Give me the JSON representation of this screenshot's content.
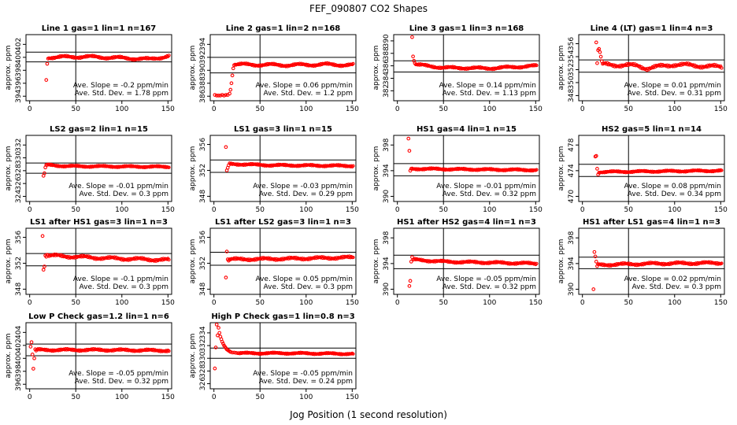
{
  "figure": {
    "title": "FEF_090807  CO2 Shapes",
    "xlabel": "Jog Position (1 second resolution)"
  },
  "colors": {
    "points": "#ff0000",
    "axes": "#000000",
    "background": "#ffffff"
  },
  "chart_data": [
    {
      "type": "scatter",
      "title": "Line 1 gas=1 lin=1 n=167",
      "ylabel": "approx. ppm",
      "xlim": [
        -4,
        154
      ],
      "xticks": [
        0,
        50,
        100,
        150
      ],
      "ylim": [
        393.3,
        403.5
      ],
      "yticks": [
        394,
        396,
        398,
        400,
        402
      ],
      "hlines": [
        399.3,
        400.8
      ],
      "vline": 50,
      "slope_text": "Ave. Slope = -0.2 ppm/min",
      "std_text": "Ave. Std. Dev. = 1.78 ppm",
      "series": [
        {
          "x": [
            18,
            19,
            20
          ],
          "y": [
            396.5,
            399.0,
            399.8
          ]
        }
      ],
      "trend": {
        "x0": 21,
        "x1": 151,
        "base": 400.0,
        "amp": 0.15,
        "noise": 0.08,
        "curve": [
          [
            21,
            400.0
          ],
          [
            60,
            400.1
          ],
          [
            100,
            399.9
          ],
          [
            130,
            399.7
          ],
          [
            151,
            400.2
          ]
        ]
      }
    },
    {
      "type": "scatter",
      "title": "Line 2 gas=1 lin=2 n=168",
      "ylabel": "approx. ppm",
      "xlim": [
        -4,
        154
      ],
      "xticks": [
        0,
        50,
        100,
        150
      ],
      "ylim": [
        385.3,
        395.5
      ],
      "yticks": [
        386,
        388,
        390,
        392,
        394
      ],
      "hlines": [
        389.6,
        392.0
      ],
      "vline": 50,
      "slope_text": "Ave. Slope = 0.06 ppm/min",
      "std_text": "Ave. Std. Dev. = 1.2 ppm",
      "series": [
        {
          "x": [
            1,
            3,
            5,
            7,
            9,
            11,
            13,
            15,
            17,
            18,
            19,
            20,
            21,
            22
          ],
          "y": [
            386.2,
            386.1,
            386.1,
            386.1,
            386.2,
            386.1,
            386.2,
            386.2,
            386.4,
            387.0,
            388.0,
            389.2,
            390.3,
            390.8
          ]
        }
      ],
      "trend": {
        "x0": 23,
        "x1": 151,
        "base": 390.9,
        "amp": 0.15,
        "noise": 0.08,
        "curve": [
          [
            23,
            390.9
          ],
          [
            80,
            390.8
          ],
          [
            120,
            390.9
          ],
          [
            151,
            390.8
          ]
        ]
      }
    },
    {
      "type": "scatter",
      "title": "Line 3 gas=1 lin=3 n=168",
      "ylabel": "approx. ppm",
      "xlim": [
        -4,
        154
      ],
      "xticks": [
        0,
        50,
        100,
        150
      ],
      "ylim": [
        380.4,
        391.0
      ],
      "yticks": [
        382,
        384,
        386,
        388,
        390
      ],
      "hlines": [
        385.0,
        386.8
      ],
      "vline": 50,
      "slope_text": "Ave. Slope = 0.14 ppm/min",
      "std_text": "Ave. Std. Dev. = 1.13 ppm",
      "series": [
        {
          "x": [
            16,
            17,
            18,
            19
          ],
          "y": [
            390.6,
            387.5,
            386.8,
            386.4
          ]
        }
      ],
      "trend": {
        "x0": 20,
        "x1": 151,
        "base": 385.8,
        "amp": 0.12,
        "noise": 0.08,
        "curve": [
          [
            20,
            386.2
          ],
          [
            50,
            385.7
          ],
          [
            100,
            385.6
          ],
          [
            151,
            386.0
          ]
        ]
      }
    },
    {
      "type": "scatter",
      "title": "Line 4 (LT) gas=1 lin=4 n=3",
      "ylabel": "approx. ppm",
      "xlim": [
        -4,
        154
      ],
      "xticks": [
        0,
        50,
        100,
        150
      ],
      "ylim": [
        347.2,
        357.4
      ],
      "yticks": [
        348,
        350,
        352,
        354,
        356
      ],
      "hlines": [
        351.6,
        353.5
      ],
      "vline": 50,
      "slope_text": "Ave. Slope = 0.01 ppm/min",
      "std_text": "Ave. Std. Dev. = 0.31 ppm",
      "series": [
        {
          "x": [
            15,
            16,
            17,
            18,
            19,
            20,
            21,
            22
          ],
          "y": [
            356.2,
            353.0,
            355.0,
            355.2,
            354.7,
            354.0,
            353.3,
            352.9
          ]
        }
      ],
      "trend": {
        "x0": 23,
        "x1": 151,
        "base": 352.7,
        "amp": 0.2,
        "noise": 0.12,
        "curve": [
          [
            23,
            352.8
          ],
          [
            60,
            352.6
          ],
          [
            70,
            352.2
          ],
          [
            100,
            352.8
          ],
          [
            151,
            352.4
          ]
        ]
      }
    },
    {
      "type": "scatter",
      "title": "LS2 gas=2 lin=1 n=15",
      "ylabel": "approx. ppm",
      "xlim": [
        -4,
        154
      ],
      "xticks": [
        0,
        50,
        100,
        150
      ],
      "ylim": [
        323.2,
        333.5
      ],
      "yticks": [
        324,
        326,
        328,
        330,
        332
      ],
      "hlines": [
        327.6,
        329.2
      ],
      "vline": 50,
      "slope_text": "Ave. Slope = -0.01 ppm/min",
      "std_text": "Ave. Std. Dev. = 0.3 ppm",
      "series": [
        {
          "x": [
            15,
            16,
            17,
            18,
            19
          ],
          "y": [
            327.2,
            327.6,
            328.5,
            328.9,
            328.9
          ]
        }
      ],
      "trend": {
        "x0": 20,
        "x1": 151,
        "base": 328.6,
        "amp": 0.08,
        "noise": 0.06,
        "curve": [
          [
            20,
            328.9
          ],
          [
            40,
            328.7
          ],
          [
            151,
            328.6
          ]
        ]
      }
    },
    {
      "type": "scatter",
      "title": "LS1 gas=3 lin=1 n=15",
      "ylabel": "approx. ppm",
      "xlim": [
        -4,
        154
      ],
      "xticks": [
        0,
        50,
        100,
        150
      ],
      "ylim": [
        347.2,
        357.4
      ],
      "yticks": [
        348,
        352,
        356
      ],
      "hlines": [
        351.7,
        353.6
      ],
      "vline": 50,
      "slope_text": "Ave. Slope = -0.03 ppm/min",
      "std_text": "Ave. Std. Dev. = 0.29 ppm",
      "series": [
        {
          "x": [
            13,
            14,
            15,
            16
          ],
          "y": [
            355.6,
            352.0,
            352.4,
            352.8
          ]
        }
      ],
      "trend": {
        "x0": 17,
        "x1": 151,
        "base": 352.8,
        "amp": 0.08,
        "noise": 0.07,
        "curve": [
          [
            17,
            353.0
          ],
          [
            60,
            352.8
          ],
          [
            151,
            352.7
          ]
        ]
      }
    },
    {
      "type": "scatter",
      "title": "HS1 gas=4 lin=1 n=15",
      "ylabel": "approx. ppm",
      "xlim": [
        -4,
        154
      ],
      "xticks": [
        0,
        50,
        100,
        150
      ],
      "ylim": [
        389.2,
        399.5
      ],
      "yticks": [
        390,
        394,
        398
      ],
      "hlines": [
        393.2,
        395.1
      ],
      "vline": 50,
      "slope_text": "Ave. Slope = -0.01 ppm/min",
      "std_text": "Ave. Std. Dev. = 0.32 ppm",
      "series": [
        {
          "x": [
            12,
            13,
            14,
            15
          ],
          "y": [
            399.0,
            397.1,
            394.0,
            394.3
          ]
        }
      ],
      "trend": {
        "x0": 16,
        "x1": 151,
        "base": 394.2,
        "amp": 0.08,
        "noise": 0.07,
        "curve": [
          [
            16,
            394.3
          ],
          [
            80,
            394.2
          ],
          [
            151,
            394.1
          ]
        ]
      }
    },
    {
      "type": "scatter",
      "title": "HS2 gas=5 lin=1 n=14",
      "ylabel": "approx. ppm",
      "xlim": [
        -4,
        154
      ],
      "xticks": [
        0,
        50,
        100,
        150
      ],
      "ylim": [
        469.2,
        479.5
      ],
      "yticks": [
        470,
        474,
        478
      ],
      "hlines": [
        473.1,
        475.0
      ],
      "vline": 50,
      "slope_text": "Ave. Slope = 0.08 ppm/min",
      "std_text": "Ave. Std. Dev. = 0.34 ppm",
      "series": [
        {
          "x": [
            14,
            15,
            16,
            17,
            18
          ],
          "y": [
            476.2,
            476.3,
            474.3,
            473.4,
            473.7
          ]
        }
      ],
      "trend": {
        "x0": 19,
        "x1": 151,
        "base": 473.9,
        "amp": 0.08,
        "noise": 0.06,
        "curve": [
          [
            19,
            473.8
          ],
          [
            80,
            473.9
          ],
          [
            151,
            474.0
          ]
        ]
      }
    },
    {
      "type": "scatter",
      "title": "LS1 after HS1 gas=3 lin=1 n=3",
      "ylabel": "approx. ppm",
      "xlim": [
        -4,
        154
      ],
      "xticks": [
        0,
        50,
        100,
        150
      ],
      "ylim": [
        347.2,
        357.4
      ],
      "yticks": [
        348,
        352,
        356
      ],
      "hlines": [
        351.6,
        353.5
      ],
      "vline": 50,
      "slope_text": "Ave. Slope = -0.1 ppm/min",
      "std_text": "Ave. Std. Dev. = 0.3 ppm",
      "series": [
        {
          "x": [
            14,
            15,
            16,
            17,
            18,
            19
          ],
          "y": [
            356.2,
            351.0,
            351.5,
            353.2,
            353.0,
            353.3
          ]
        }
      ],
      "trend": {
        "x0": 20,
        "x1": 151,
        "base": 352.8,
        "amp": 0.15,
        "noise": 0.1,
        "curve": [
          [
            20,
            353.2
          ],
          [
            80,
            352.8
          ],
          [
            151,
            352.5
          ]
        ]
      }
    },
    {
      "type": "scatter",
      "title": "LS1 after LS2 gas=3 lin=1 n=3",
      "ylabel": "approx. ppm",
      "xlim": [
        -4,
        154
      ],
      "xticks": [
        0,
        50,
        100,
        150
      ],
      "ylim": [
        347.2,
        357.4
      ],
      "yticks": [
        348,
        352,
        356
      ],
      "hlines": [
        351.7,
        353.7
      ],
      "vline": 50,
      "slope_text": "Ave. Slope = 0.05 ppm/min",
      "std_text": "Ave. Std. Dev. = 0.3 ppm",
      "series": [
        {
          "x": [
            13,
            14,
            15,
            16,
            17
          ],
          "y": [
            349.8,
            353.8,
            352.6,
            352.4,
            352.6
          ]
        }
      ],
      "trend": {
        "x0": 18,
        "x1": 151,
        "base": 352.7,
        "amp": 0.12,
        "noise": 0.1,
        "curve": [
          [
            18,
            352.6
          ],
          [
            80,
            352.7
          ],
          [
            151,
            352.9
          ]
        ]
      }
    },
    {
      "type": "scatter",
      "title": "HS1 after HS2 gas=4 lin=1 n=3",
      "ylabel": "approx. ppm",
      "xlim": [
        -4,
        154
      ],
      "xticks": [
        0,
        50,
        100,
        150
      ],
      "ylim": [
        389.2,
        399.5
      ],
      "yticks": [
        390,
        394,
        398
      ],
      "hlines": [
        393.2,
        395.3
      ],
      "vline": 50,
      "slope_text": "Ave. Slope = -0.05 ppm/min",
      "std_text": "Ave. Std. Dev. = 0.32 ppm",
      "series": [
        {
          "x": [
            13,
            14,
            15,
            16,
            17
          ],
          "y": [
            390.5,
            391.3,
            394.3,
            395.0,
            394.6
          ]
        }
      ],
      "trend": {
        "x0": 18,
        "x1": 151,
        "base": 394.2,
        "amp": 0.1,
        "noise": 0.08,
        "curve": [
          [
            18,
            394.6
          ],
          [
            50,
            394.3
          ],
          [
            151,
            394.0
          ]
        ]
      }
    },
    {
      "type": "scatter",
      "title": "HS1 after LS1 gas=4 lin=1 n=3",
      "ylabel": "approx. ppm",
      "xlim": [
        -4,
        154
      ],
      "xticks": [
        0,
        50,
        100,
        150
      ],
      "ylim": [
        389.2,
        399.5
      ],
      "yticks": [
        390,
        394,
        398
      ],
      "hlines": [
        393.2,
        395.0
      ],
      "vline": 50,
      "slope_text": "Ave. Slope = 0.02 ppm/min",
      "std_text": "Ave. Std. Dev. = 0.3 ppm",
      "series": [
        {
          "x": [
            12,
            13,
            14,
            15,
            16,
            17
          ],
          "y": [
            390.0,
            395.8,
            395.1,
            394.3,
            393.6,
            393.9
          ]
        }
      ],
      "trend": {
        "x0": 18,
        "x1": 151,
        "base": 394.0,
        "amp": 0.12,
        "noise": 0.09,
        "curve": [
          [
            18,
            393.8
          ],
          [
            80,
            394.0
          ],
          [
            151,
            394.1
          ]
        ]
      }
    },
    {
      "type": "scatter",
      "title": "Low P Check gas=1.2 lin=1 n=6",
      "ylabel": "approx. ppm",
      "xlim": [
        -4,
        154
      ],
      "xticks": [
        0,
        50,
        100,
        150
      ],
      "ylim": [
        395.3,
        405.5
      ],
      "yticks": [
        396,
        398,
        400,
        402,
        404
      ],
      "hlines": [
        400.4,
        402.2
      ],
      "vline": 50,
      "slope_text": "Ave. Slope = -0.05 ppm/min",
      "std_text": "Ave. Std. Dev. = 0.32 ppm",
      "series": [
        {
          "x": [
            1,
            2,
            3,
            4,
            5,
            6,
            7
          ],
          "y": [
            401.8,
            402.5,
            400.6,
            398.4,
            400.0,
            401.4,
            401.2
          ]
        }
      ],
      "trend": {
        "x0": 8,
        "x1": 151,
        "base": 401.3,
        "amp": 0.1,
        "noise": 0.08,
        "curve": [
          [
            8,
            401.3
          ],
          [
            80,
            401.3
          ],
          [
            151,
            401.2
          ]
        ]
      }
    },
    {
      "type": "scatter",
      "title": "High P Check gas=1 lin=0.8 n=3",
      "ylabel": "approx. ppm",
      "xlim": [
        -4,
        154
      ],
      "xticks": [
        0,
        50,
        100,
        150
      ],
      "ylim": [
        325.2,
        335.6
      ],
      "yticks": [
        326,
        328,
        330,
        332,
        334
      ],
      "hlines": [
        330.0,
        331.6
      ],
      "vline": 50,
      "slope_text": "Ave. Slope = -0.05 ppm/min",
      "std_text": "Ave. Std. Dev. = 0.24 ppm",
      "series": [
        {
          "x": [
            1,
            2,
            3,
            4,
            5,
            6,
            7,
            8,
            9,
            10,
            11,
            12,
            13,
            14,
            15,
            16,
            17,
            18,
            20,
            22,
            24,
            26
          ],
          "y": [
            328.4,
            331.7,
            335.3,
            333.6,
            334.8,
            334.0,
            333.4,
            333.0,
            332.6,
            332.3,
            332.0,
            331.8,
            331.6,
            331.4,
            331.3,
            331.2,
            331.1,
            331.0,
            330.9,
            330.9,
            330.85,
            330.8
          ]
        }
      ],
      "trend": {
        "x0": 27,
        "x1": 151,
        "base": 330.8,
        "amp": 0.08,
        "noise": 0.06,
        "curve": [
          [
            27,
            330.8
          ],
          [
            80,
            330.8
          ],
          [
            151,
            330.7
          ]
        ]
      }
    }
  ]
}
